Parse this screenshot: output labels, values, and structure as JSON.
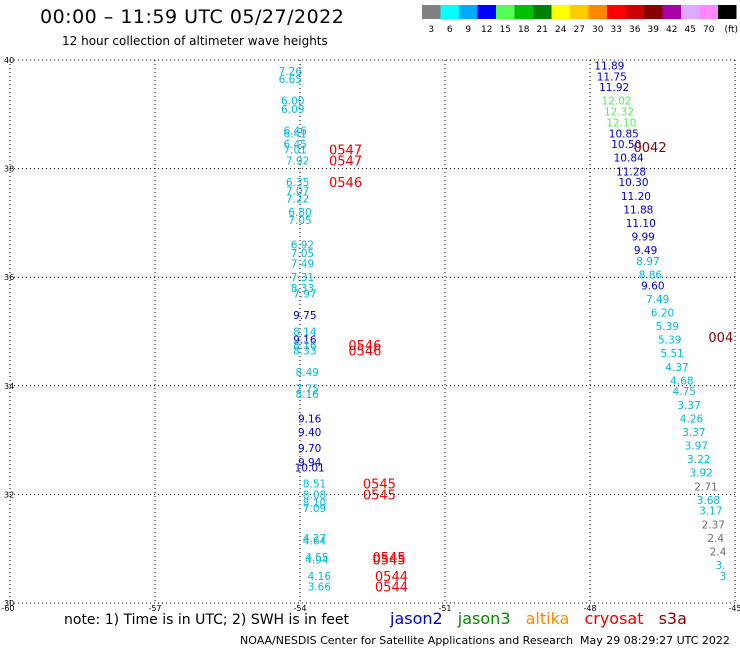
{
  "header": {
    "title": "00:00 – 11:59 UTC 05/27/2022",
    "subtitle": "12 hour collection of altimeter wave heights"
  },
  "colorbar": {
    "colors": [
      "#808080",
      "#00ffff",
      "#00aaff",
      "#0000ff",
      "#55ff55",
      "#00c000",
      "#008000",
      "#ffff00",
      "#ffcc00",
      "#ff8800",
      "#ff0000",
      "#cc0000",
      "#880000",
      "#aa00aa",
      "#ddaaff",
      "#ff88ff",
      "#000000"
    ],
    "labels": [
      "3",
      "6",
      "9",
      "12",
      "15",
      "18",
      "21",
      "24",
      "27",
      "30",
      "33",
      "36",
      "39",
      "42",
      "45",
      "70",
      "(ft)"
    ]
  },
  "note": "note: 1) Time is in UTC; 2) SWH is in feet",
  "legend": [
    {
      "label": "jason2",
      "color": "#0000cc"
    },
    {
      "label": "jason3",
      "color": "#008800"
    },
    {
      "label": "altika",
      "color": "#ff8800"
    },
    {
      "label": "cryosat",
      "color": "#ee0000"
    },
    {
      "label": "s3a",
      "color": "#880000"
    }
  ],
  "footer": {
    "left": "NOAA/NESDIS Center for Satellite Applications and Research",
    "right": "May 29 08:29:27 UTC 2022"
  },
  "chart_data": {
    "type": "scatter",
    "title": "00:00 – 11:59 UTC 05/27/2022",
    "xlim": [
      -60,
      -45
    ],
    "ylim": [
      30,
      40
    ],
    "x_ticks": [
      "-60",
      "-57",
      "-54",
      "-51",
      "-48",
      "-45"
    ],
    "y_ticks": [
      "30",
      "32",
      "34",
      "36",
      "38",
      "40"
    ],
    "grid": true,
    "series": [
      {
        "name": "jason2",
        "points": [
          {
            "x": -54.2,
            "y": 39.8,
            "v": "7.26",
            "c": "#00bbdd"
          },
          {
            "x": -54.2,
            "y": 39.65,
            "v": "6.65",
            "c": "#00bbdd"
          },
          {
            "x": -54.15,
            "y": 39.25,
            "v": "6.00",
            "c": "#00bbdd"
          },
          {
            "x": -54.15,
            "y": 39.1,
            "v": "6.09",
            "c": "#00bbdd"
          },
          {
            "x": -54.1,
            "y": 38.7,
            "v": "6.46",
            "c": "#00bbdd"
          },
          {
            "x": -54.1,
            "y": 38.65,
            "v": "6.41",
            "c": "#00bbdd"
          },
          {
            "x": -54.1,
            "y": 38.45,
            "v": "6.45",
            "c": "#00bbdd"
          },
          {
            "x": -54.1,
            "y": 38.35,
            "v": "7.01",
            "c": "#00bbdd"
          },
          {
            "x": -54.05,
            "y": 38.15,
            "v": "7.92",
            "c": "#00bbdd"
          },
          {
            "x": -54.05,
            "y": 37.75,
            "v": "6.35",
            "c": "#00bbdd"
          },
          {
            "x": -54.05,
            "y": 37.6,
            "v": "7.07",
            "c": "#00bbdd"
          },
          {
            "x": -54.05,
            "y": 37.45,
            "v": "7.22",
            "c": "#00bbdd"
          },
          {
            "x": -54.0,
            "y": 37.2,
            "v": "6.80",
            "c": "#00bbdd"
          },
          {
            "x": -54.0,
            "y": 37.05,
            "v": "7.05",
            "c": "#00bbdd"
          },
          {
            "x": -53.95,
            "y": 36.6,
            "v": "6.92",
            "c": "#00bbdd"
          },
          {
            "x": -53.95,
            "y": 36.45,
            "v": "7.05",
            "c": "#00bbdd"
          },
          {
            "x": -53.95,
            "y": 36.25,
            "v": "7.49",
            "c": "#00bbdd"
          },
          {
            "x": -53.95,
            "y": 36.0,
            "v": "7.31",
            "c": "#00bbdd"
          },
          {
            "x": -53.95,
            "y": 35.8,
            "v": "8.33",
            "c": "#00bbdd"
          },
          {
            "x": -53.9,
            "y": 35.7,
            "v": "7.97",
            "c": "#00bbdd"
          },
          {
            "x": -53.9,
            "y": 35.3,
            "v": "9.75",
            "c": "#0000cc"
          },
          {
            "x": -53.9,
            "y": 35.0,
            "v": "8.14",
            "c": "#00bbdd"
          },
          {
            "x": -53.9,
            "y": 34.85,
            "v": "9.16",
            "c": "#0000cc"
          },
          {
            "x": -53.9,
            "y": 34.75,
            "v": "8.16",
            "c": "#00bbdd"
          },
          {
            "x": -53.9,
            "y": 34.65,
            "v": "8.33",
            "c": "#00bbdd"
          },
          {
            "x": -53.85,
            "y": 34.25,
            "v": "8.49",
            "c": "#00bbdd"
          },
          {
            "x": -53.85,
            "y": 33.95,
            "v": "7.75",
            "c": "#00bbdd"
          },
          {
            "x": -53.85,
            "y": 33.85,
            "v": "8.16",
            "c": "#00bbdd"
          },
          {
            "x": -53.8,
            "y": 33.4,
            "v": "9.16",
            "c": "#0000cc"
          },
          {
            "x": -53.8,
            "y": 33.15,
            "v": "9.40",
            "c": "#0000cc"
          },
          {
            "x": -53.8,
            "y": 32.85,
            "v": "9.70",
            "c": "#0000cc"
          },
          {
            "x": -53.8,
            "y": 32.6,
            "v": "9.94",
            "c": "#0000cc"
          },
          {
            "x": -53.8,
            "y": 32.5,
            "v": "10.01",
            "c": "#0000cc"
          },
          {
            "x": -53.7,
            "y": 32.2,
            "v": "8.51",
            "c": "#00bbdd"
          },
          {
            "x": -53.7,
            "y": 32.0,
            "v": "8.08",
            "c": "#00bbdd"
          },
          {
            "x": -53.7,
            "y": 31.85,
            "v": "8.10",
            "c": "#00bbdd"
          },
          {
            "x": -53.7,
            "y": 31.75,
            "v": "7.09",
            "c": "#00bbdd"
          },
          {
            "x": -53.7,
            "y": 31.2,
            "v": "4.27",
            "c": "#00bbdd"
          },
          {
            "x": -53.7,
            "y": 31.15,
            "v": "4.64",
            "c": "#00bbdd"
          },
          {
            "x": -53.65,
            "y": 30.85,
            "v": "4.55",
            "c": "#00bbdd"
          },
          {
            "x": -53.65,
            "y": 30.8,
            "v": "4.94",
            "c": "#00bbdd"
          },
          {
            "x": -53.6,
            "y": 30.5,
            "v": "4.16",
            "c": "#00bbdd"
          },
          {
            "x": -53.6,
            "y": 30.3,
            "v": "3.66",
            "c": "#00bbdd"
          }
        ]
      },
      {
        "name": "jason3",
        "points": [
          {
            "x": -47.6,
            "y": 39.9,
            "v": "11.89",
            "c": "#0000cc"
          },
          {
            "x": -47.55,
            "y": 39.7,
            "v": "11.75",
            "c": "#0000cc"
          },
          {
            "x": -47.5,
            "y": 39.5,
            "v": "11.92",
            "c": "#0000cc"
          },
          {
            "x": -47.45,
            "y": 39.25,
            "v": "12.02",
            "c": "#55ee55"
          },
          {
            "x": -47.4,
            "y": 39.05,
            "v": "12.32",
            "c": "#55ee55"
          },
          {
            "x": -47.35,
            "y": 38.85,
            "v": "12.10",
            "c": "#55ee55"
          },
          {
            "x": -47.3,
            "y": 38.65,
            "v": "10.85",
            "c": "#0000cc"
          },
          {
            "x": -47.25,
            "y": 38.45,
            "v": "10.50",
            "c": "#0000cc"
          },
          {
            "x": -47.2,
            "y": 38.2,
            "v": "10.84",
            "c": "#0000cc"
          },
          {
            "x": -47.15,
            "y": 37.95,
            "v": "11.28",
            "c": "#0000cc"
          },
          {
            "x": -47.1,
            "y": 37.75,
            "v": "10.30",
            "c": "#0000cc"
          },
          {
            "x": -47.05,
            "y": 37.5,
            "v": "11.20",
            "c": "#0000cc"
          },
          {
            "x": -47.0,
            "y": 37.25,
            "v": "11.88",
            "c": "#0000cc"
          },
          {
            "x": -46.95,
            "y": 37.0,
            "v": "11.10",
            "c": "#0000cc"
          },
          {
            "x": -46.9,
            "y": 36.75,
            "v": "9.99",
            "c": "#0000cc"
          },
          {
            "x": -46.85,
            "y": 36.5,
            "v": "9.49",
            "c": "#0000cc"
          },
          {
            "x": -46.8,
            "y": 36.3,
            "v": "8.97",
            "c": "#00bbdd"
          },
          {
            "x": -46.75,
            "y": 36.05,
            "v": "8.86",
            "c": "#00bbdd"
          },
          {
            "x": -46.7,
            "y": 35.85,
            "v": "9.60",
            "c": "#0000cc"
          },
          {
            "x": -46.6,
            "y": 35.6,
            "v": "7.49",
            "c": "#00bbdd"
          },
          {
            "x": -46.5,
            "y": 35.35,
            "v": "6.20",
            "c": "#00bbdd"
          },
          {
            "x": -46.4,
            "y": 35.1,
            "v": "5.39",
            "c": "#00bbdd"
          },
          {
            "x": -46.35,
            "y": 34.85,
            "v": "5.39",
            "c": "#00bbdd"
          },
          {
            "x": -46.3,
            "y": 34.6,
            "v": "5.51",
            "c": "#00bbdd"
          },
          {
            "x": -46.2,
            "y": 34.35,
            "v": "4.37",
            "c": "#00bbdd"
          },
          {
            "x": -46.1,
            "y": 34.1,
            "v": "4.68",
            "c": "#00bbdd"
          },
          {
            "x": -46.05,
            "y": 33.9,
            "v": "4.75",
            "c": "#00bbdd"
          },
          {
            "x": -45.95,
            "y": 33.65,
            "v": "3.37",
            "c": "#00bbdd"
          },
          {
            "x": -45.9,
            "y": 33.4,
            "v": "4.26",
            "c": "#00bbdd"
          },
          {
            "x": -45.85,
            "y": 33.15,
            "v": "3.37",
            "c": "#00bbdd"
          },
          {
            "x": -45.8,
            "y": 32.9,
            "v": "3.97",
            "c": "#00bbdd"
          },
          {
            "x": -45.75,
            "y": 32.65,
            "v": "3.22",
            "c": "#00bbdd"
          },
          {
            "x": -45.7,
            "y": 32.4,
            "v": "3.92",
            "c": "#00bbdd"
          },
          {
            "x": -45.6,
            "y": 32.15,
            "v": "2.71",
            "c": "#707070"
          },
          {
            "x": -45.55,
            "y": 31.9,
            "v": "3.68",
            "c": "#00bbdd"
          },
          {
            "x": -45.5,
            "y": 31.7,
            "v": "3.17",
            "c": "#00bbdd"
          },
          {
            "x": -45.45,
            "y": 31.45,
            "v": "2.37",
            "c": "#707070"
          },
          {
            "x": -45.4,
            "y": 31.2,
            "v": "2.4",
            "c": "#707070"
          },
          {
            "x": -45.35,
            "y": 30.95,
            "v": "2.4",
            "c": "#707070"
          },
          {
            "x": -45.3,
            "y": 30.7,
            "v": "3.",
            "c": "#00bbdd"
          },
          {
            "x": -45.25,
            "y": 30.5,
            "v": "3",
            "c": "#00bbdd"
          }
        ]
      }
    ],
    "time_labels": [
      {
        "x": -53.4,
        "y": 38.35,
        "v": "0547",
        "c": "#ee0000"
      },
      {
        "x": -53.4,
        "y": 38.15,
        "v": "0547",
        "c": "#ee0000"
      },
      {
        "x": -53.4,
        "y": 37.75,
        "v": "0546",
        "c": "#ee0000"
      },
      {
        "x": -53.0,
        "y": 34.75,
        "v": "0546",
        "c": "#ee0000"
      },
      {
        "x": -53.0,
        "y": 34.65,
        "v": "0546",
        "c": "#ee0000"
      },
      {
        "x": -52.7,
        "y": 32.2,
        "v": "0545",
        "c": "#ee0000"
      },
      {
        "x": -52.7,
        "y": 32.0,
        "v": "0545",
        "c": "#ee0000"
      },
      {
        "x": -52.5,
        "y": 30.85,
        "v": "0545",
        "c": "#ee0000"
      },
      {
        "x": -52.5,
        "y": 30.8,
        "v": "0545",
        "c": "#ee0000"
      },
      {
        "x": -52.45,
        "y": 30.5,
        "v": "0544",
        "c": "#ee0000"
      },
      {
        "x": -52.45,
        "y": 30.3,
        "v": "0544",
        "c": "#ee0000"
      },
      {
        "x": -47.1,
        "y": 38.4,
        "v": "0042",
        "c": "#880000"
      },
      {
        "x": -45.55,
        "y": 34.9,
        "v": "004",
        "c": "#880000"
      }
    ]
  }
}
